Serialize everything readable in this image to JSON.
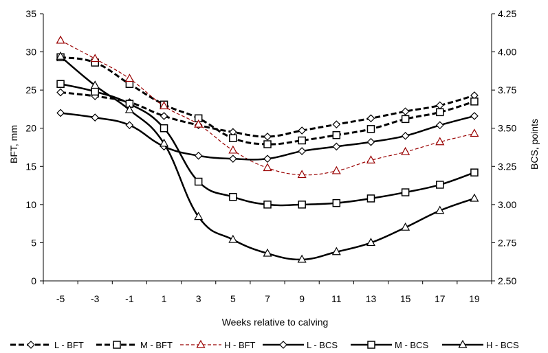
{
  "chart_data": {
    "type": "line",
    "xlabel": "Weeks relative to calving",
    "ylabel_left": "BFT, mm",
    "ylabel_right": "BCS, points",
    "x": [
      -5,
      -3,
      -1,
      1,
      3,
      5,
      7,
      9,
      11,
      13,
      15,
      17,
      19
    ],
    "ylim_left": [
      0,
      35
    ],
    "ylim_right": [
      2.5,
      4.25
    ],
    "yticks_left": [
      0,
      5,
      10,
      15,
      20,
      25,
      30,
      35
    ],
    "yticks_right": [
      "2.50",
      "2.75",
      "3.00",
      "3.25",
      "3.50",
      "3.75",
      "4.00",
      "4.25"
    ],
    "grid": false,
    "legend_position": "bottom",
    "series": [
      {
        "name": "L - BFT",
        "axis": "left",
        "marker": "diamond",
        "line": "dashed-thick",
        "color": "#000000",
        "values": [
          24.7,
          24.2,
          23.4,
          21.6,
          20.4,
          19.5,
          18.9,
          19.7,
          20.5,
          21.3,
          22.2,
          23.0,
          24.3
        ]
      },
      {
        "name": "M - BFT",
        "axis": "left",
        "marker": "square",
        "line": "dashed-thick",
        "color": "#000000",
        "values": [
          29.3,
          28.6,
          25.8,
          23.1,
          21.3,
          18.7,
          17.9,
          18.4,
          19.1,
          19.9,
          21.2,
          22.1,
          23.5
        ]
      },
      {
        "name": "H - BFT",
        "axis": "left",
        "marker": "triangle",
        "line": "dashed-thin",
        "color": "#990000",
        "values": [
          31.5,
          29.1,
          26.5,
          22.9,
          20.5,
          17.1,
          14.8,
          13.9,
          14.4,
          15.8,
          16.9,
          18.2,
          19.3
        ]
      },
      {
        "name": "L - BCS",
        "axis": "right",
        "marker": "diamond",
        "line": "solid",
        "color": "#000000",
        "values": [
          3.6,
          3.57,
          3.52,
          3.38,
          3.32,
          3.3,
          3.3,
          3.35,
          3.38,
          3.41,
          3.45,
          3.52,
          3.58
        ]
      },
      {
        "name": "M - BCS",
        "axis": "right",
        "marker": "square",
        "line": "solid",
        "color": "#000000",
        "values": [
          3.79,
          3.74,
          3.66,
          3.5,
          3.15,
          3.05,
          3.0,
          3.0,
          3.01,
          3.04,
          3.08,
          3.13,
          3.21
        ]
      },
      {
        "name": "H - BCS",
        "axis": "right",
        "marker": "triangle",
        "line": "solid",
        "color": "#000000",
        "values": [
          3.97,
          3.78,
          3.62,
          3.4,
          2.92,
          2.77,
          2.68,
          2.64,
          2.69,
          2.75,
          2.85,
          2.96,
          3.04
        ]
      }
    ]
  }
}
